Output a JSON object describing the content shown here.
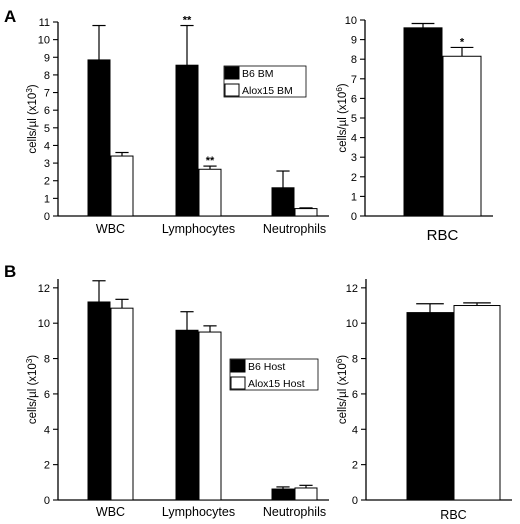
{
  "figure": {
    "panel_labels": [
      "A",
      "B"
    ]
  },
  "chart_data": [
    {
      "id": "A-left",
      "panel": "A",
      "type": "bar",
      "categories": [
        "WBC",
        "Lymphocytes",
        "Neutrophils"
      ],
      "series": [
        {
          "name": "B6 BM",
          "fill": "#000000",
          "values": [
            8.85,
            8.55,
            1.6
          ],
          "errors": [
            1.95,
            2.25,
            0.95
          ]
        },
        {
          "name": "Alox15 BM",
          "fill": "#ffffff",
          "values": [
            3.4,
            2.65,
            0.42
          ],
          "errors": [
            0.2,
            0.18,
            0.04
          ]
        }
      ],
      "significance": [
        [
          "",
          ""
        ],
        [
          "**",
          "**"
        ],
        [
          "",
          ""
        ]
      ],
      "ylabel": "cells/µl (x10",
      "ylabel_sup": "3",
      "ylabel_close": ")",
      "ylim": [
        0,
        11
      ],
      "yticks": [
        0,
        1,
        2,
        3,
        4,
        5,
        6,
        7,
        8,
        9,
        10,
        11
      ],
      "legend_position": "top-right",
      "grid": false
    },
    {
      "id": "A-right",
      "panel": "A",
      "type": "bar",
      "categories": [
        "RBC"
      ],
      "series": [
        {
          "name": "",
          "fill": "#000000",
          "values": [
            9.6
          ],
          "errors": [
            0.22
          ]
        },
        {
          "name": "",
          "fill": "#ffffff",
          "values": [
            8.15
          ],
          "errors": [
            0.45
          ]
        }
      ],
      "significance": [
        [
          "",
          "*"
        ]
      ],
      "ylabel": "cells/µl (x10",
      "ylabel_sup": "6",
      "ylabel_close": ")",
      "ylim": [
        0,
        10
      ],
      "yticks": [
        0,
        1,
        2,
        3,
        4,
        5,
        6,
        7,
        8,
        9,
        10
      ],
      "grid": false
    },
    {
      "id": "B-left",
      "panel": "B",
      "type": "bar",
      "categories": [
        "WBC",
        "Lymphocytes",
        "Neutrophils"
      ],
      "series": [
        {
          "name": "B6 Host",
          "fill": "#000000",
          "values": [
            11.2,
            9.6,
            0.62
          ],
          "errors": [
            1.2,
            1.05,
            0.12
          ]
        },
        {
          "name": "Alox15 Host",
          "fill": "#ffffff",
          "values": [
            10.85,
            9.5,
            0.68
          ],
          "errors": [
            0.5,
            0.35,
            0.15
          ]
        }
      ],
      "significance": [
        [
          "",
          ""
        ],
        [
          "",
          ""
        ],
        [
          "",
          ""
        ]
      ],
      "ylabel": "cells/µl (x10",
      "ylabel_sup": "3",
      "ylabel_close": ")",
      "ylim": [
        0,
        12.5
      ],
      "yticks": [
        0,
        2,
        4,
        6,
        8,
        10,
        12
      ],
      "legend_position": "center-right",
      "grid": false
    },
    {
      "id": "B-right",
      "panel": "B",
      "type": "bar",
      "categories": [
        "RBC"
      ],
      "series": [
        {
          "name": "",
          "fill": "#000000",
          "values": [
            10.6
          ],
          "errors": [
            0.5
          ]
        },
        {
          "name": "",
          "fill": "#ffffff",
          "values": [
            11.0
          ],
          "errors": [
            0.15
          ]
        }
      ],
      "significance": [
        [
          "",
          ""
        ]
      ],
      "ylabel": "cells/µl (x10",
      "ylabel_sup": "6",
      "ylabel_close": ")",
      "ylim": [
        0,
        12.5
      ],
      "yticks": [
        0,
        2,
        4,
        6,
        8,
        10,
        12
      ],
      "grid": false
    }
  ]
}
